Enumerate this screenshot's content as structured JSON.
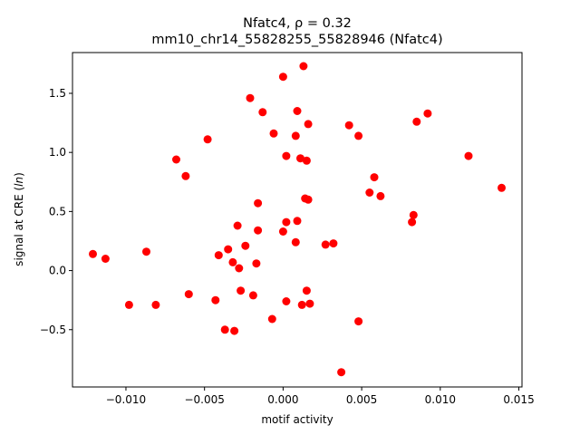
{
  "chart_data": {
    "type": "scatter",
    "title": "Nfatc4, ρ = 0.32",
    "subtitle": "mm10_chr14_55828255_55828946 (Nfatc4)",
    "xlabel": "motif activity",
    "ylabel": "signal at CRE (ln)",
    "xlim": [
      -0.0134,
      0.0152
    ],
    "ylim": [
      -0.985,
      1.845
    ],
    "xticks": [
      -0.01,
      -0.005,
      0.0,
      0.005,
      0.01,
      0.015
    ],
    "xtick_labels": [
      "−0.010",
      "−0.005",
      "0.000",
      "0.005",
      "0.010",
      "0.015"
    ],
    "yticks": [
      -0.5,
      0.0,
      0.5,
      1.0,
      1.5
    ],
    "ytick_labels": [
      "−0.5",
      "0.0",
      "0.5",
      "1.0",
      "1.5"
    ],
    "grid": false,
    "marker_color": "#ff0000",
    "series": [
      {
        "points": [
          [
            0.0013,
            1.73
          ],
          [
            0.0,
            1.64
          ],
          [
            -0.0021,
            1.46
          ],
          [
            -0.0013,
            1.34
          ],
          [
            0.0009,
            1.35
          ],
          [
            0.0016,
            1.24
          ],
          [
            0.0042,
            1.23
          ],
          [
            0.0085,
            1.26
          ],
          [
            0.0092,
            1.33
          ],
          [
            -0.0006,
            1.16
          ],
          [
            0.0008,
            1.14
          ],
          [
            0.0048,
            1.14
          ],
          [
            -0.0048,
            1.11
          ],
          [
            0.0002,
            0.97
          ],
          [
            0.0011,
            0.95
          ],
          [
            0.0015,
            0.93
          ],
          [
            -0.0068,
            0.94
          ],
          [
            0.0118,
            0.97
          ],
          [
            -0.0062,
            0.8
          ],
          [
            0.0058,
            0.79
          ],
          [
            0.0139,
            0.7
          ],
          [
            0.0055,
            0.66
          ],
          [
            0.0062,
            0.63
          ],
          [
            0.0014,
            0.61
          ],
          [
            0.0016,
            0.6
          ],
          [
            -0.0016,
            0.57
          ],
          [
            0.0083,
            0.47
          ],
          [
            0.0082,
            0.41
          ],
          [
            0.0002,
            0.41
          ],
          [
            0.0009,
            0.42
          ],
          [
            -0.0029,
            0.38
          ],
          [
            -0.0016,
            0.34
          ],
          [
            0.0,
            0.33
          ],
          [
            0.0008,
            0.24
          ],
          [
            0.0027,
            0.22
          ],
          [
            0.0032,
            0.23
          ],
          [
            -0.0024,
            0.21
          ],
          [
            -0.0035,
            0.18
          ],
          [
            -0.0121,
            0.14
          ],
          [
            -0.0087,
            0.16
          ],
          [
            -0.0041,
            0.13
          ],
          [
            -0.0113,
            0.1
          ],
          [
            -0.0032,
            0.07
          ],
          [
            -0.0017,
            0.06
          ],
          [
            -0.0028,
            0.02
          ],
          [
            -0.006,
            -0.2
          ],
          [
            -0.0027,
            -0.17
          ],
          [
            -0.0019,
            -0.21
          ],
          [
            0.0015,
            -0.17
          ],
          [
            -0.0043,
            -0.25
          ],
          [
            0.0002,
            -0.26
          ],
          [
            -0.0098,
            -0.29
          ],
          [
            -0.0081,
            -0.29
          ],
          [
            0.0012,
            -0.29
          ],
          [
            0.0017,
            -0.28
          ],
          [
            -0.0007,
            -0.41
          ],
          [
            0.0048,
            -0.43
          ],
          [
            -0.0037,
            -0.5
          ],
          [
            -0.0031,
            -0.51
          ],
          [
            0.0037,
            -0.86
          ]
        ]
      }
    ]
  }
}
